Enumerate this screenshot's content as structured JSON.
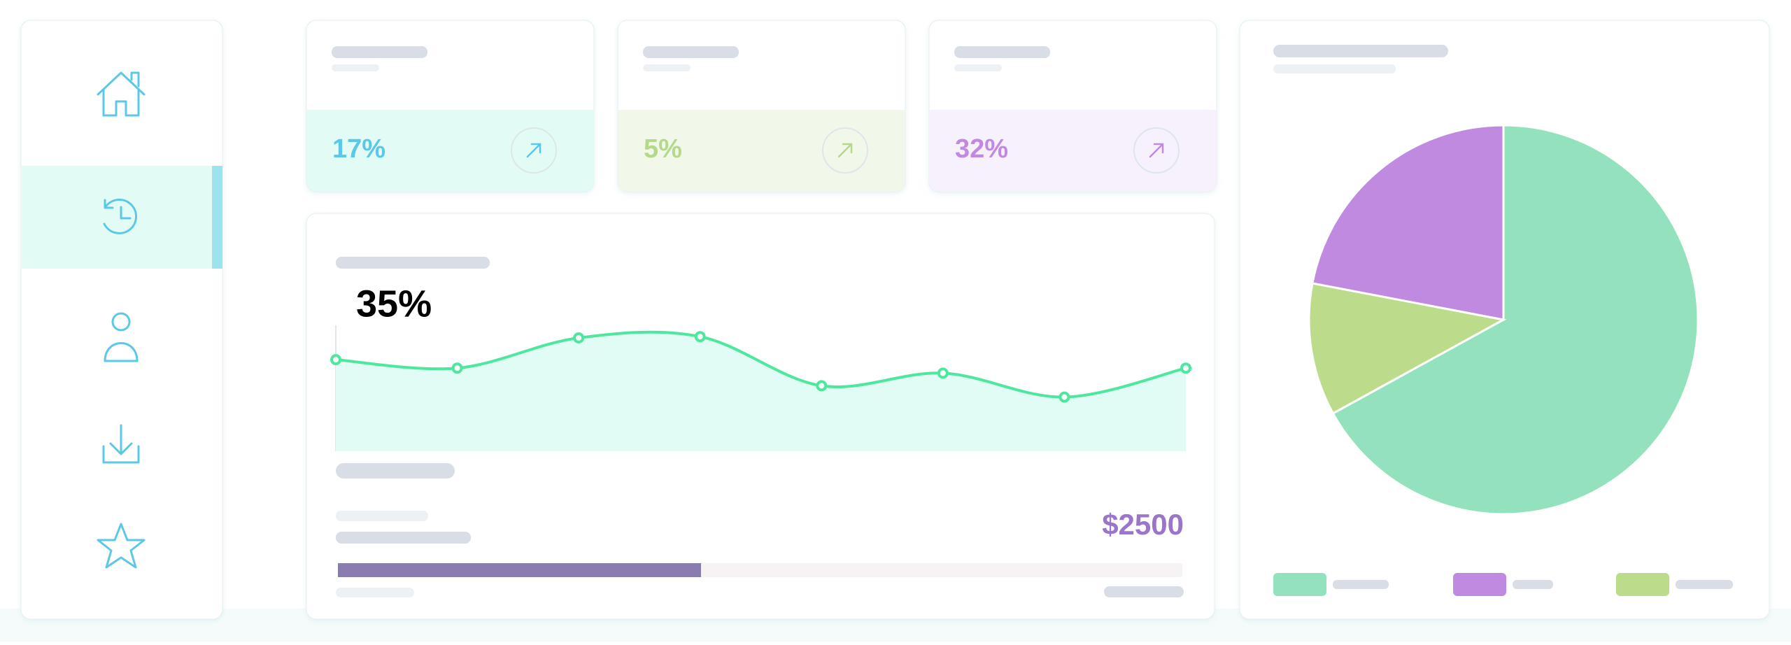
{
  "stats": [
    {
      "label": "17%",
      "color": "#5bc8e8",
      "background": "#e2fbf5"
    },
    {
      "label": "5%",
      "color": "#b5d98a",
      "background": "#f1f8ea"
    },
    {
      "label": "32%",
      "color": "#c18ae0",
      "background": "#f7f1fd"
    }
  ],
  "line_chart": {
    "type": "line",
    "label": "35%",
    "values": [
      72.7,
      66,
      90,
      91,
      52,
      62,
      43,
      66
    ],
    "ylim": [
      0,
      100
    ],
    "color": "#4de89e",
    "fill": "#e0fcf4"
  },
  "amount": "$2500",
  "progress": {
    "value": 43,
    "range": [
      0,
      100
    ],
    "color": "#8a7bb0"
  },
  "pie": {
    "type": "pie",
    "values": [
      67,
      11,
      22
    ],
    "colors": [
      "#94e2bd",
      "#bcdc8c",
      "#bf8ae0"
    ],
    "legend_order": [
      0,
      2,
      1
    ]
  }
}
